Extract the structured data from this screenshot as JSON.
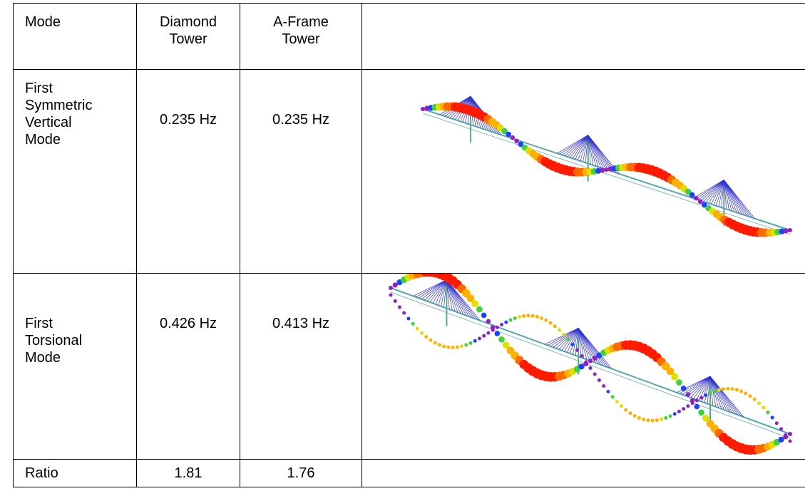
{
  "table": {
    "header": [
      "Mode",
      "Diamond Tower",
      "A-Frame Tower"
    ],
    "rows": [
      [
        "First Symmetric Vertical Mode",
        "0.235 Hz",
        "0.235 Hz"
      ],
      [
        "First Torsional Mode",
        "0.426 Hz",
        "0.413 Hz"
      ],
      [
        "Ratio",
        "1.81",
        "1.76"
      ]
    ]
  }
}
